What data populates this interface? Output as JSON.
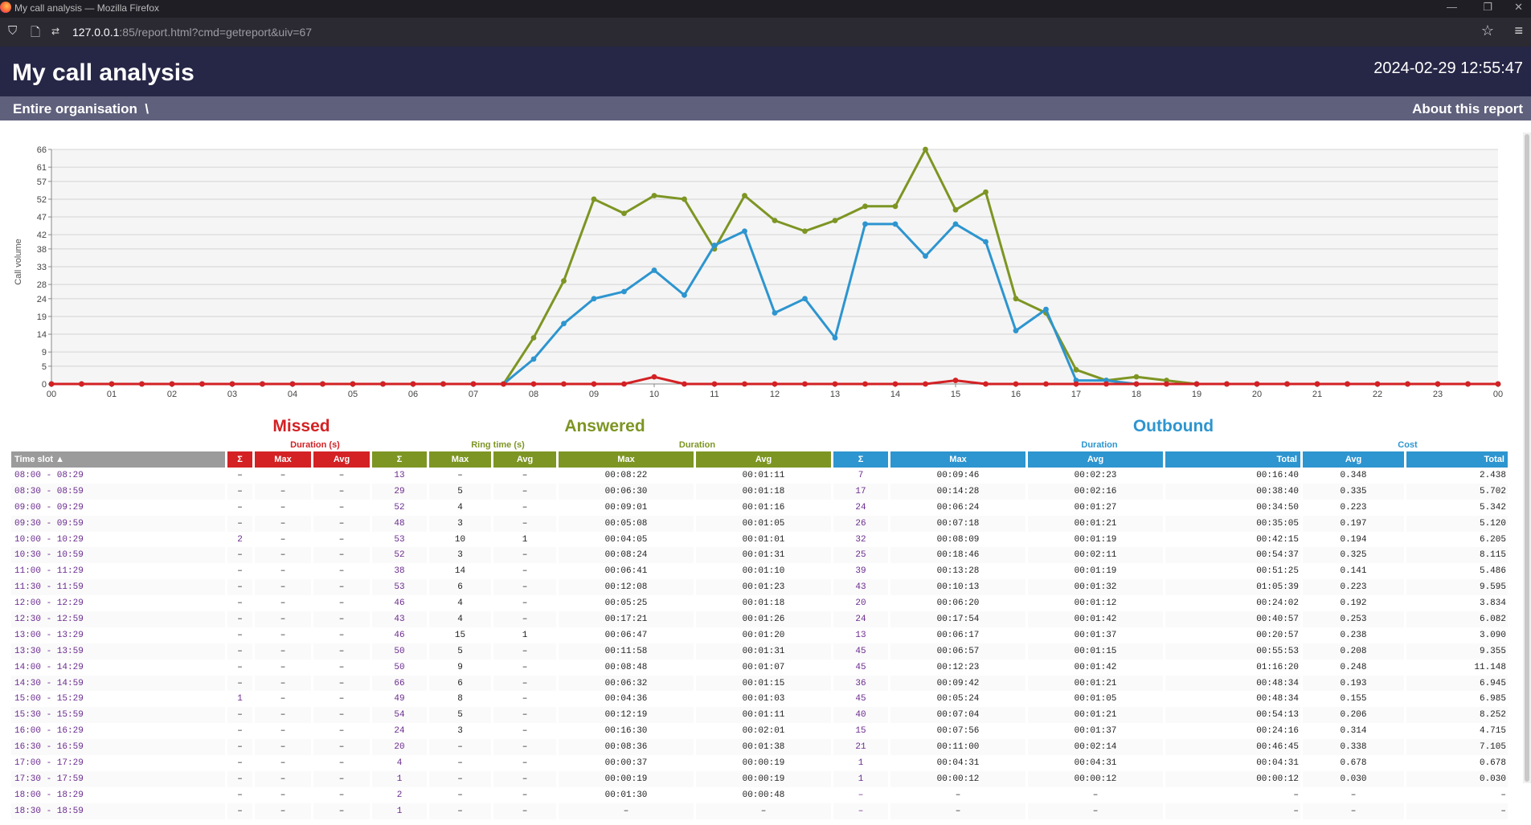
{
  "browser": {
    "window_title": "My call analysis — Mozilla Firefox",
    "url_host": "127.0.0.1",
    "url_rest": ":85/report.html?cmd=getreport&uiv=67"
  },
  "header": {
    "title": "My call analysis",
    "datetime": "2024-02-29 12:55:47"
  },
  "nav": {
    "breadcrumb": "Entire organisation",
    "separator": "\\",
    "about": "About this report"
  },
  "colors": {
    "missed": "#d32124",
    "answered": "#7d9523",
    "outbound": "#2d95cf",
    "header_bg": "#262646",
    "subbar_bg": "#5f607c"
  },
  "icons": [
    "shield-icon",
    "page-icon",
    "permissions-icon",
    "star-icon",
    "menu-icon"
  ],
  "chart_data": {
    "type": "line",
    "ylabel": "Call volume",
    "ylim": [
      0,
      66
    ],
    "yticks": [
      0,
      5,
      9,
      14,
      19,
      24,
      28,
      33,
      38,
      42,
      47,
      52,
      57,
      61,
      66
    ],
    "xticks": [
      "00",
      "01",
      "02",
      "03",
      "04",
      "05",
      "06",
      "07",
      "08",
      "09",
      "10",
      "11",
      "12",
      "13",
      "14",
      "15",
      "16",
      "17",
      "18",
      "19",
      "20",
      "21",
      "22",
      "23",
      "00"
    ],
    "x_slots": 48,
    "grid": true,
    "series": [
      {
        "key": "answered",
        "values": [
          0,
          0,
          0,
          0,
          0,
          0,
          0,
          0,
          0,
          0,
          0,
          0,
          0,
          0,
          0,
          0,
          13,
          29,
          52,
          48,
          53,
          52,
          38,
          53,
          46,
          43,
          46,
          50,
          50,
          66,
          49,
          54,
          24,
          20,
          4,
          1,
          2,
          1,
          0,
          0,
          0,
          0,
          0,
          0,
          0,
          0,
          0,
          0,
          0
        ]
      },
      {
        "key": "outbound",
        "values": [
          0,
          0,
          0,
          0,
          0,
          0,
          0,
          0,
          0,
          0,
          0,
          0,
          0,
          0,
          0,
          0,
          7,
          17,
          24,
          26,
          32,
          25,
          39,
          43,
          20,
          24,
          13,
          45,
          45,
          36,
          45,
          40,
          15,
          21,
          1,
          1,
          0,
          0,
          0,
          0,
          0,
          0,
          0,
          0,
          0,
          0,
          0,
          0,
          0
        ]
      },
      {
        "key": "missed",
        "values": [
          0,
          0,
          0,
          0,
          0,
          0,
          0,
          0,
          0,
          0,
          0,
          0,
          0,
          0,
          0,
          0,
          0,
          0,
          0,
          0,
          2,
          0,
          0,
          0,
          0,
          0,
          0,
          0,
          0,
          0,
          1,
          0,
          0,
          0,
          0,
          0,
          0,
          0,
          0,
          0,
          0,
          0,
          0,
          0,
          0,
          0,
          0,
          0,
          0
        ]
      }
    ]
  },
  "sections": {
    "missed": "Missed",
    "answered": "Answered",
    "outbound": "Outbound",
    "duration_s": "Duration (s)",
    "ring_time_s": "Ring time (s)",
    "duration": "Duration",
    "cost": "Cost"
  },
  "columns": [
    "Time slot ▲",
    "Σ",
    "Max",
    "Avg",
    "Σ",
    "Max",
    "Avg",
    "Max",
    "Avg",
    "Σ",
    "Max",
    "Avg",
    "Total",
    "Avg",
    "Total"
  ],
  "rows": [
    [
      "08:00 - 08:29",
      "–",
      "–",
      "–",
      "13",
      "–",
      "–",
      "00:08:22",
      "00:01:11",
      "7",
      "00:09:46",
      "00:02:23",
      "00:16:40",
      "0.348",
      "2.438"
    ],
    [
      "08:30 - 08:59",
      "–",
      "–",
      "–",
      "29",
      "5",
      "–",
      "00:06:30",
      "00:01:18",
      "17",
      "00:14:28",
      "00:02:16",
      "00:38:40",
      "0.335",
      "5.702"
    ],
    [
      "09:00 - 09:29",
      "–",
      "–",
      "–",
      "52",
      "4",
      "–",
      "00:09:01",
      "00:01:16",
      "24",
      "00:06:24",
      "00:01:27",
      "00:34:50",
      "0.223",
      "5.342"
    ],
    [
      "09:30 - 09:59",
      "–",
      "–",
      "–",
      "48",
      "3",
      "–",
      "00:05:08",
      "00:01:05",
      "26",
      "00:07:18",
      "00:01:21",
      "00:35:05",
      "0.197",
      "5.120"
    ],
    [
      "10:00 - 10:29",
      "2",
      "–",
      "–",
      "53",
      "10",
      "1",
      "00:04:05",
      "00:01:01",
      "32",
      "00:08:09",
      "00:01:19",
      "00:42:15",
      "0.194",
      "6.205"
    ],
    [
      "10:30 - 10:59",
      "–",
      "–",
      "–",
      "52",
      "3",
      "–",
      "00:08:24",
      "00:01:31",
      "25",
      "00:18:46",
      "00:02:11",
      "00:54:37",
      "0.325",
      "8.115"
    ],
    [
      "11:00 - 11:29",
      "–",
      "–",
      "–",
      "38",
      "14",
      "–",
      "00:06:41",
      "00:01:10",
      "39",
      "00:13:28",
      "00:01:19",
      "00:51:25",
      "0.141",
      "5.486"
    ],
    [
      "11:30 - 11:59",
      "–",
      "–",
      "–",
      "53",
      "6",
      "–",
      "00:12:08",
      "00:01:23",
      "43",
      "00:10:13",
      "00:01:32",
      "01:05:39",
      "0.223",
      "9.595"
    ],
    [
      "12:00 - 12:29",
      "–",
      "–",
      "–",
      "46",
      "4",
      "–",
      "00:05:25",
      "00:01:18",
      "20",
      "00:06:20",
      "00:01:12",
      "00:24:02",
      "0.192",
      "3.834"
    ],
    [
      "12:30 - 12:59",
      "–",
      "–",
      "–",
      "43",
      "4",
      "–",
      "00:17:21",
      "00:01:26",
      "24",
      "00:17:54",
      "00:01:42",
      "00:40:57",
      "0.253",
      "6.082"
    ],
    [
      "13:00 - 13:29",
      "–",
      "–",
      "–",
      "46",
      "15",
      "1",
      "00:06:47",
      "00:01:20",
      "13",
      "00:06:17",
      "00:01:37",
      "00:20:57",
      "0.238",
      "3.090"
    ],
    [
      "13:30 - 13:59",
      "–",
      "–",
      "–",
      "50",
      "5",
      "–",
      "00:11:58",
      "00:01:31",
      "45",
      "00:06:57",
      "00:01:15",
      "00:55:53",
      "0.208",
      "9.355"
    ],
    [
      "14:00 - 14:29",
      "–",
      "–",
      "–",
      "50",
      "9",
      "–",
      "00:08:48",
      "00:01:07",
      "45",
      "00:12:23",
      "00:01:42",
      "01:16:20",
      "0.248",
      "11.148"
    ],
    [
      "14:30 - 14:59",
      "–",
      "–",
      "–",
      "66",
      "6",
      "–",
      "00:06:32",
      "00:01:15",
      "36",
      "00:09:42",
      "00:01:21",
      "00:48:34",
      "0.193",
      "6.945"
    ],
    [
      "15:00 - 15:29",
      "1",
      "–",
      "–",
      "49",
      "8",
      "–",
      "00:04:36",
      "00:01:03",
      "45",
      "00:05:24",
      "00:01:05",
      "00:48:34",
      "0.155",
      "6.985"
    ],
    [
      "15:30 - 15:59",
      "–",
      "–",
      "–",
      "54",
      "5",
      "–",
      "00:12:19",
      "00:01:11",
      "40",
      "00:07:04",
      "00:01:21",
      "00:54:13",
      "0.206",
      "8.252"
    ],
    [
      "16:00 - 16:29",
      "–",
      "–",
      "–",
      "24",
      "3",
      "–",
      "00:16:30",
      "00:02:01",
      "15",
      "00:07:56",
      "00:01:37",
      "00:24:16",
      "0.314",
      "4.715"
    ],
    [
      "16:30 - 16:59",
      "–",
      "–",
      "–",
      "20",
      "–",
      "–",
      "00:08:36",
      "00:01:38",
      "21",
      "00:11:00",
      "00:02:14",
      "00:46:45",
      "0.338",
      "7.105"
    ],
    [
      "17:00 - 17:29",
      "–",
      "–",
      "–",
      "4",
      "–",
      "–",
      "00:00:37",
      "00:00:19",
      "1",
      "00:04:31",
      "00:04:31",
      "00:04:31",
      "0.678",
      "0.678"
    ],
    [
      "17:30 - 17:59",
      "–",
      "–",
      "–",
      "1",
      "–",
      "–",
      "00:00:19",
      "00:00:19",
      "1",
      "00:00:12",
      "00:00:12",
      "00:00:12",
      "0.030",
      "0.030"
    ],
    [
      "18:00 - 18:29",
      "–",
      "–",
      "–",
      "2",
      "–",
      "–",
      "00:01:30",
      "00:00:48",
      "–",
      "–",
      "–",
      "–",
      "–",
      "–"
    ],
    [
      "18:30 - 18:59",
      "–",
      "–",
      "–",
      "1",
      "–",
      "–",
      "–",
      "–",
      "–",
      "–",
      "–",
      "–",
      "–",
      "–"
    ]
  ]
}
